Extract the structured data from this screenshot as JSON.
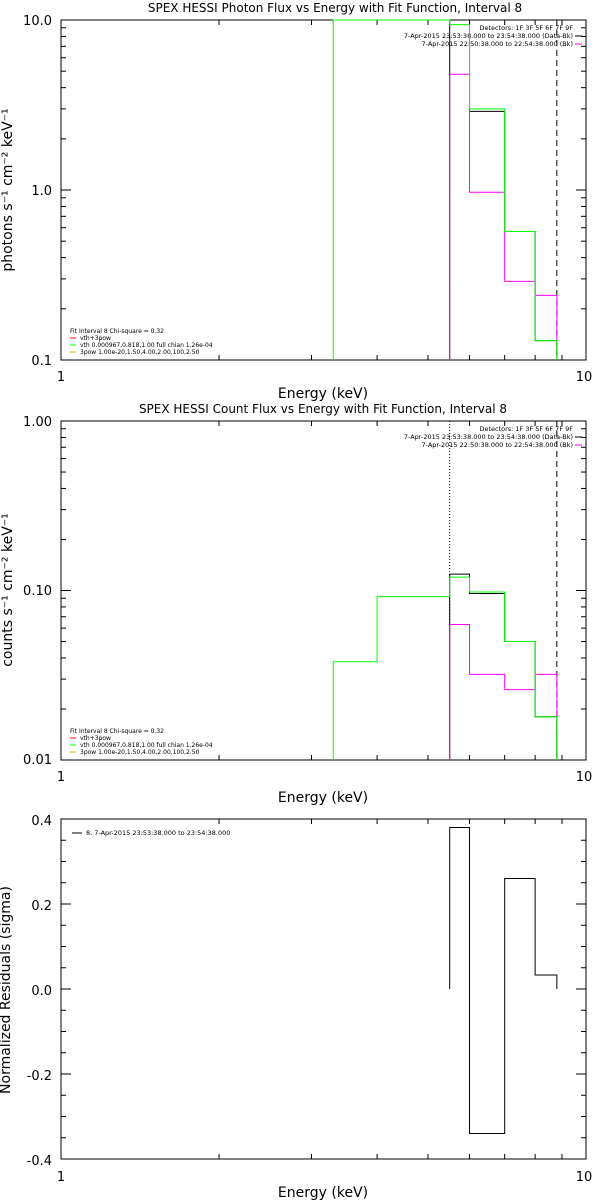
{
  "chart_data": [
    {
      "type": "line",
      "title": "SPEX HESSI Photon Flux vs Energy with Fit Function, Interval 8",
      "xlabel": "Energy (keV)",
      "ylabel": "photons s⁻¹ cm⁻² keV⁻¹",
      "xscale": "log",
      "yscale": "log",
      "xlim": [
        1,
        10
      ],
      "ylim": [
        0.1,
        10
      ],
      "x_ticks": [
        "1",
        "10"
      ],
      "y_ticks": [
        "10.0",
        "1.0",
        "0.1"
      ],
      "legend_detectors": [
        "Detectors: 1F 3F 5F 6F 7F 9F",
        "7-Apr-2015 23:53:38.000 to 23:54:38.000 (Data-Bk)",
        "7-Apr-2015 22:50:38.000 to 22:54:38.000 (Bk)"
      ],
      "legend_fit": [
        "Fit Interval 8   Chi-square = 0.32",
        "vth+3pow",
        "vth 0.000967,0.818,1.00  full chian 1.26e-04",
        "3pow 1.00e-20,1.50,4.00,2.00,100,2.50"
      ],
      "vlines": {
        "dotted": [],
        "dashed": [
          8.8
        ]
      },
      "series": [
        {
          "name": "Data-Bk",
          "color": "#000000",
          "edges": [
            5.5,
            6,
            7,
            8,
            8.8
          ],
          "values": [
            10,
            2.9,
            0.57,
            0.13
          ]
        },
        {
          "name": "Bk",
          "color": "#ff00ff",
          "edges": [
            5.5,
            6,
            7,
            8,
            8.8
          ],
          "values": [
            4.8,
            0.97,
            0.29,
            0.24
          ]
        },
        {
          "name": "vth",
          "color": "#00ff00",
          "edges": [
            3.3,
            5.5,
            6,
            7,
            8,
            8.8
          ],
          "values": [
            12,
            9.4,
            3.0,
            0.57,
            0.13
          ]
        }
      ]
    },
    {
      "type": "line",
      "title": "SPEX HESSI Count Flux vs Energy with Fit Function, Interval 8",
      "xlabel": "Energy (keV)",
      "ylabel": "counts s⁻¹ cm⁻² keV⁻¹",
      "xscale": "log",
      "yscale": "log",
      "xlim": [
        1,
        10
      ],
      "ylim": [
        0.01,
        1
      ],
      "x_ticks": [
        "1",
        "10"
      ],
      "y_ticks": [
        "1.00",
        "0.10",
        "0.01"
      ],
      "legend_detectors": [
        "Detectors: 1F 3F 5F 6F 7F 9F",
        "7-Apr-2015 23:53:38.000 to 23:54:38.000 (Data-Bk)",
        "7-Apr-2015 22:50:38.000 to 22:54:38.000 (Bk)"
      ],
      "legend_fit": [
        "Fit Interval 8   Chi-square = 0.32",
        "vth+3pow",
        "vth 0.000967,0.818,1.00  full chian 1.26e-04",
        "3pow 1.00e-20,1.50,4.00,2.00,100,2.50"
      ],
      "vlines": {
        "dotted": [
          5.5
        ],
        "dashed": [
          8.8
        ]
      },
      "series": [
        {
          "name": "Data-Bk",
          "color": "#000000",
          "edges": [
            5.5,
            6,
            7,
            8,
            8.8
          ],
          "values": [
            0.125,
            0.096,
            0.05,
            0.018
          ]
        },
        {
          "name": "Bk",
          "color": "#ff00ff",
          "edges": [
            5.5,
            6,
            7,
            8,
            8.8
          ],
          "values": [
            0.063,
            0.032,
            0.026,
            0.032
          ]
        },
        {
          "name": "vth",
          "color": "#00ff00",
          "edges": [
            3.3,
            4.0,
            5.5,
            6,
            7,
            8,
            8.8
          ],
          "values": [
            0.038,
            0.092,
            0.12,
            0.098,
            0.05,
            0.018
          ]
        }
      ]
    },
    {
      "type": "line",
      "title": "",
      "xlabel": "Energy (keV)",
      "ylabel": "Normalized Residuals (sigma)",
      "xscale": "log",
      "yscale": "linear",
      "xlim": [
        1,
        10
      ],
      "ylim": [
        -0.4,
        0.4
      ],
      "x_ticks": [
        "1",
        "10"
      ],
      "y_ticks": [
        "0.4",
        "0.2",
        "0.0",
        "-0.2",
        "-0.4"
      ],
      "legend": [
        "8.  7-Apr-2015 23:53:38.000 to 23:54:38.000"
      ],
      "series": [
        {
          "name": "8.",
          "color": "#000000",
          "edges": [
            5.5,
            6,
            7,
            8,
            8.8
          ],
          "values": [
            0.38,
            -0.34,
            0.26,
            0.033
          ]
        }
      ]
    }
  ]
}
